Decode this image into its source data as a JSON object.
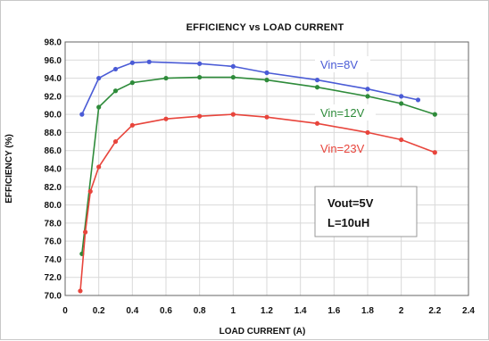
{
  "chart_data": {
    "type": "line",
    "title": "EFFICIENCY vs LOAD CURRENT",
    "xlabel": "LOAD CURRENT (A)",
    "ylabel": "EFFICIENCY (%)",
    "xlim": [
      0,
      2.4
    ],
    "ylim": [
      70,
      98
    ],
    "x_ticks": [
      "0",
      "0.2",
      "0.4",
      "0.6",
      "0.8",
      "1",
      "1.2",
      "1.4",
      "1.6",
      "1.8",
      "2",
      "2.2",
      "2.4"
    ],
    "x_tick_values": [
      0,
      0.2,
      0.4,
      0.6,
      0.8,
      1.0,
      1.2,
      1.4,
      1.6,
      1.8,
      2.0,
      2.2,
      2.4
    ],
    "y_ticks": [
      "70.0",
      "72.0",
      "74.0",
      "76.0",
      "78.0",
      "80.0",
      "82.0",
      "84.0",
      "86.0",
      "88.0",
      "90.0",
      "92.0",
      "94.0",
      "96.0",
      "98.0"
    ],
    "y_tick_values": [
      70,
      72,
      74,
      76,
      78,
      80,
      82,
      84,
      86,
      88,
      90,
      92,
      94,
      96,
      98
    ],
    "grid": true,
    "series": [
      {
        "name": "Vin=8V",
        "color": "#4a5bd6",
        "x": [
          0.1,
          0.2,
          0.3,
          0.4,
          0.5,
          0.8,
          1.0,
          1.2,
          1.5,
          1.8,
          2.0,
          2.1
        ],
        "y": [
          90.0,
          94.0,
          95.0,
          95.7,
          95.8,
          95.6,
          95.3,
          94.6,
          93.8,
          92.8,
          92.0,
          91.6
        ]
      },
      {
        "name": "Vin=12V",
        "color": "#2e8b3a",
        "x": [
          0.1,
          0.2,
          0.3,
          0.4,
          0.6,
          0.8,
          1.0,
          1.2,
          1.5,
          1.8,
          2.0,
          2.2
        ],
        "y": [
          74.6,
          90.8,
          92.6,
          93.5,
          94.0,
          94.1,
          94.1,
          93.8,
          93.0,
          92.0,
          91.2,
          90.0
        ]
      },
      {
        "name": "Vin=23V",
        "color": "#e8453c",
        "x": [
          0.09,
          0.12,
          0.15,
          0.2,
          0.3,
          0.4,
          0.6,
          0.8,
          1.0,
          1.2,
          1.5,
          1.8,
          2.0,
          2.2
        ],
        "y": [
          70.5,
          77.0,
          81.5,
          84.2,
          87.0,
          88.8,
          89.5,
          89.8,
          90.0,
          89.7,
          89.0,
          88.0,
          87.2,
          85.8
        ]
      }
    ],
    "annotation_lines": [
      "Vout=5V",
      "L=10uH"
    ]
  }
}
